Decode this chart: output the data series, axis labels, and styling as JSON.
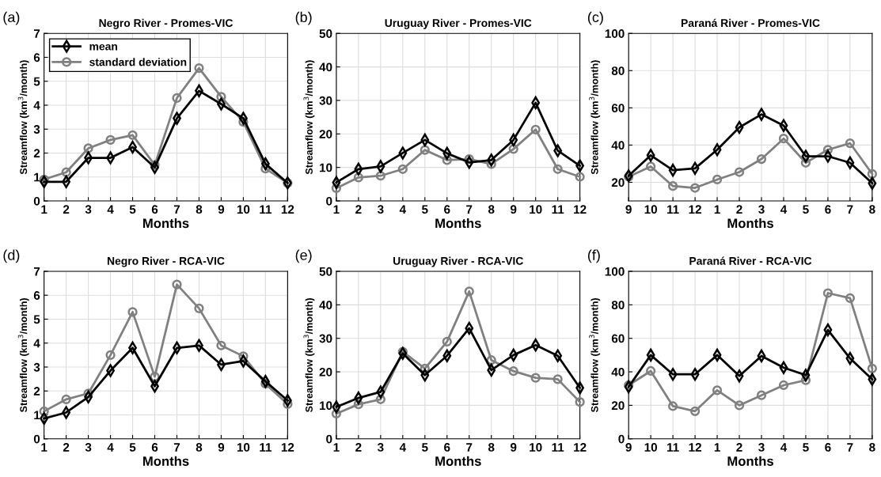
{
  "chart_data": [
    {
      "type": "line",
      "title": "Negro River - Promes-VIC",
      "xlabel": "Months",
      "ylabel": "Streamflow (km$^{3}$/month)",
      "annotations": [
        "(a)"
      ],
      "categories": [
        "1",
        "2",
        "3",
        "4",
        "5",
        "6",
        "7",
        "8",
        "9",
        "10",
        "11",
        "12"
      ],
      "ylim": [
        0,
        7
      ],
      "yticks": [
        0,
        1,
        2,
        3,
        4,
        5,
        6,
        7
      ],
      "grid": true,
      "legend": "top left",
      "line_style": "solid",
      "series": [
        {
          "name": "mean",
          "color": "#000000",
          "marker": "diamond",
          "values": [
            0.8,
            0.8,
            1.8,
            1.8,
            2.25,
            1.4,
            3.45,
            4.6,
            4.05,
            3.45,
            1.55,
            0.75
          ]
        },
        {
          "name": "standard deviation",
          "color": "#808080",
          "marker": "circle",
          "values": [
            0.9,
            1.2,
            2.2,
            2.55,
            2.75,
            1.5,
            4.3,
            5.55,
            4.35,
            3.3,
            1.35,
            0.75
          ]
        }
      ]
    },
    {
      "type": "line",
      "title": "Uruguay River - Promes-VIC",
      "xlabel": "Months",
      "ylabel": "Streamflow (km$^{3}$/month)",
      "annotations": [
        "(b)"
      ],
      "categories": [
        "1",
        "2",
        "3",
        "4",
        "5",
        "6",
        "7",
        "8",
        "9",
        "10",
        "11",
        "12"
      ],
      "ylim": [
        0,
        50
      ],
      "yticks": [
        0,
        10,
        20,
        30,
        40,
        50
      ],
      "grid": true,
      "line_style": "solid",
      "series": [
        {
          "color": "#000000",
          "marker": "diamond",
          "values": [
            5.5,
            9.5,
            10.3,
            14.3,
            18.2,
            14.2,
            11.5,
            12.2,
            18.2,
            29.3,
            15,
            10.5
          ]
        },
        {
          "color": "#808080",
          "marker": "circle",
          "values": [
            3.8,
            7,
            7.5,
            9.5,
            15.2,
            12.2,
            12.5,
            11,
            15.5,
            21.3,
            9.5,
            7.2
          ]
        }
      ]
    },
    {
      "type": "line",
      "title": "Paraná River - Promes-VIC",
      "xlabel": "Months",
      "ylabel": "Streamflow (km$^{3}$/month)",
      "annotations": [
        "(c)"
      ],
      "categories": [
        "9",
        "10",
        "11",
        "12",
        "1",
        "2",
        "3",
        "4",
        "5",
        "6",
        "7",
        "8"
      ],
      "ylim": [
        10,
        100
      ],
      "yticks": [
        20,
        40,
        60,
        80,
        100
      ],
      "grid": true,
      "line_style": "solid",
      "series": [
        {
          "color": "#000000",
          "marker": "diamond",
          "values": [
            23.5,
            34.5,
            26.5,
            27.5,
            37.5,
            49.5,
            56.5,
            50.5,
            34,
            34,
            30.5,
            19.5
          ]
        },
        {
          "color": "#808080",
          "marker": "circle",
          "values": [
            23,
            28.5,
            18,
            17,
            21.5,
            25.5,
            32.5,
            43.5,
            30.5,
            37.5,
            41,
            24.5
          ]
        }
      ]
    },
    {
      "type": "line",
      "title": "Negro River - RCA-VIC",
      "xlabel": "Months",
      "ylabel": "Streamflow (km$^{3}$/month)",
      "annotations": [
        "(d)"
      ],
      "categories": [
        "1",
        "2",
        "3",
        "4",
        "5",
        "6",
        "7",
        "8",
        "9",
        "10",
        "11",
        "12"
      ],
      "ylim": [
        0,
        7
      ],
      "yticks": [
        0,
        1,
        2,
        3,
        4,
        5,
        6,
        7
      ],
      "grid": true,
      "line_style": "solid",
      "series": [
        {
          "color": "#000000",
          "marker": "diamond",
          "values": [
            0.85,
            1.1,
            1.75,
            2.85,
            3.8,
            2.2,
            3.8,
            3.9,
            3.1,
            3.25,
            2.4,
            1.6
          ]
        },
        {
          "color": "#808080",
          "marker": "circle",
          "values": [
            1.15,
            1.65,
            1.9,
            3.5,
            5.3,
            2.6,
            6.45,
            5.45,
            3.9,
            3.45,
            2.3,
            1.45
          ]
        }
      ]
    },
    {
      "type": "line",
      "title": "Uruguay River - RCA-VIC",
      "xlabel": "Months",
      "ylabel": "Streamflow (km$^{3}$/month)",
      "annotations": [
        "(e)"
      ],
      "categories": [
        "1",
        "2",
        "3",
        "4",
        "5",
        "6",
        "7",
        "8",
        "9",
        "10",
        "11",
        "12"
      ],
      "ylim": [
        0,
        50
      ],
      "yticks": [
        0,
        10,
        20,
        30,
        40,
        50
      ],
      "grid": true,
      "line_style": "solid",
      "series": [
        {
          "color": "#000000",
          "marker": "diamond",
          "values": [
            9.5,
            12.2,
            14,
            25.5,
            19,
            24.8,
            33,
            20.5,
            25,
            28,
            24.8,
            15.2
          ]
        },
        {
          "color": "#808080",
          "marker": "circle",
          "values": [
            7.5,
            10.3,
            11.8,
            26,
            21,
            29,
            44,
            23.5,
            20.2,
            18.2,
            17.8,
            11
          ]
        }
      ]
    },
    {
      "type": "line",
      "title": "Paraná River - RCA-VIC",
      "xlabel": "Months",
      "ylabel": "Streamflow (km$^{3}$/month)",
      "annotations": [
        "(f)"
      ],
      "categories": [
        "9",
        "10",
        "11",
        "12",
        "1",
        "2",
        "3",
        "4",
        "5",
        "6",
        "7",
        "8"
      ],
      "ylim": [
        0,
        100
      ],
      "yticks": [
        0,
        20,
        40,
        60,
        80,
        100
      ],
      "grid": true,
      "line_style": "solid",
      "series": [
        {
          "color": "#000000",
          "marker": "diamond",
          "values": [
            31,
            50,
            38.5,
            38.5,
            50,
            37.5,
            49.5,
            42.5,
            38,
            65,
            48,
            35.5
          ]
        },
        {
          "color": "#808080",
          "marker": "circle",
          "values": [
            32,
            40.5,
            19.5,
            16.5,
            29,
            20,
            26,
            32,
            35,
            87,
            84,
            42
          ]
        }
      ]
    }
  ]
}
